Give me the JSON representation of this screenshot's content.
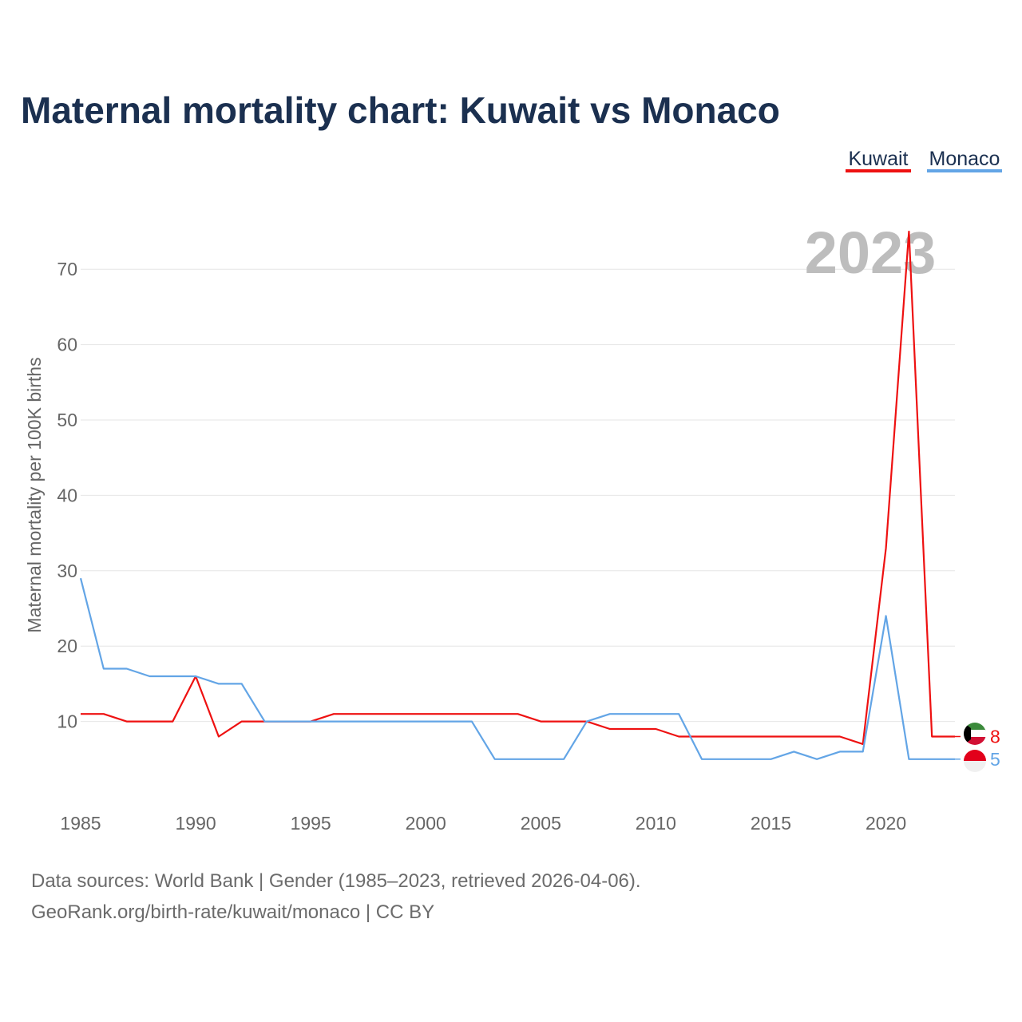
{
  "chart_data": {
    "type": "line",
    "title": "Maternal mortality chart: Kuwait vs Monaco",
    "ylabel": "Maternal mortality per 100K births",
    "xlabel": "",
    "watermark_year": "2023",
    "x": [
      1985,
      1986,
      1987,
      1988,
      1989,
      1990,
      1991,
      1992,
      1993,
      1994,
      1995,
      1996,
      1997,
      1998,
      1999,
      2000,
      2001,
      2002,
      2003,
      2004,
      2005,
      2006,
      2007,
      2008,
      2009,
      2010,
      2011,
      2012,
      2013,
      2014,
      2015,
      2016,
      2017,
      2018,
      2019,
      2020,
      2021,
      2022,
      2023
    ],
    "xlim": [
      1985,
      2023
    ],
    "ylim": [
      0,
      75
    ],
    "x_ticks": [
      "1985",
      "1990",
      "1995",
      "2000",
      "2005",
      "2010",
      "2015",
      "2020"
    ],
    "y_ticks": [
      "10",
      "20",
      "30",
      "40",
      "50",
      "60",
      "70"
    ],
    "grid": true,
    "legend_position": "top-right",
    "series": [
      {
        "name": "Kuwait",
        "color": "#ee1111",
        "end_label": "8",
        "flag": "kuwait-flag",
        "values": [
          11,
          11,
          10,
          10,
          10,
          16,
          8,
          10,
          10,
          10,
          10,
          11,
          11,
          11,
          11,
          11,
          11,
          11,
          11,
          11,
          10,
          10,
          10,
          9,
          9,
          9,
          8,
          8,
          8,
          8,
          8,
          8,
          8,
          8,
          7,
          33,
          75,
          8,
          8
        ]
      },
      {
        "name": "Monaco",
        "color": "#63a5e6",
        "end_label": "5",
        "flag": "monaco-flag",
        "values": [
          29,
          17,
          17,
          16,
          16,
          16,
          15,
          15,
          10,
          10,
          10,
          10,
          10,
          10,
          10,
          10,
          10,
          10,
          5,
          5,
          5,
          5,
          10,
          11,
          11,
          11,
          11,
          5,
          5,
          5,
          5,
          6,
          5,
          6,
          6,
          24,
          5,
          5,
          5
        ]
      }
    ]
  },
  "footer": {
    "line1": "Data sources: World Bank | Gender (1985–2023, retrieved 2026-04-06).",
    "line2": "GeoRank.org/birth-rate/kuwait/monaco | CC BY"
  }
}
